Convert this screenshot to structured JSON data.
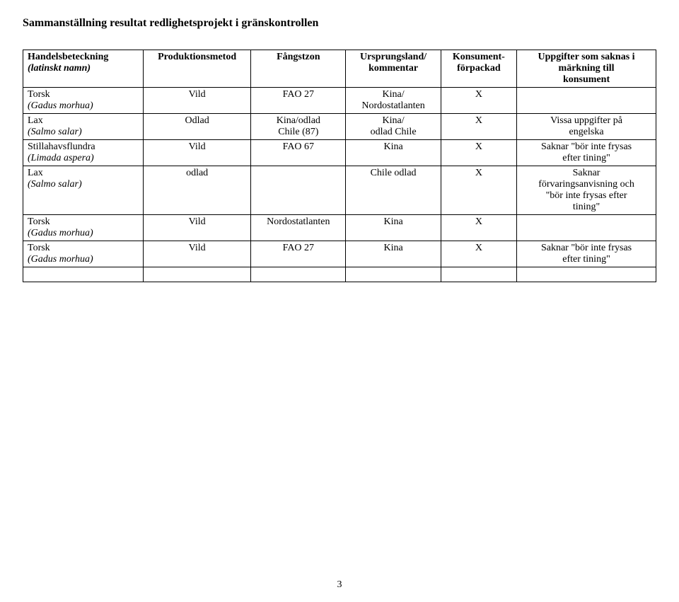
{
  "title": "Sammanställning resultat redlighetsprojekt i gränskontrollen",
  "pageNumber": "3",
  "headers": {
    "c1a": "Handelsbeteckning",
    "c1b": "(latinskt namn)",
    "c2": "Produktionsmetod",
    "c3": "Fångstzon",
    "c4a": "Ursprungsland/",
    "c4b": "kommentar",
    "c5a": "Konsument-",
    "c5b": "förpackad",
    "c6a": "Uppgifter som saknas i",
    "c6b": "märkning till",
    "c6c": "konsument"
  },
  "rows": [
    {
      "name": "Torsk",
      "latin": "(Gadus morhua)",
      "method": "Vild",
      "zone": "FAO 27",
      "origin1": "Kina/",
      "origin2": "Nordostatlanten",
      "pack": "X",
      "miss1": "",
      "miss2": ""
    },
    {
      "name": "Lax",
      "latin": "(Salmo salar)",
      "method": "Odlad",
      "zone": "Kina/odlad",
      "zone2": "Chile (87)",
      "origin1": "Kina/",
      "origin2": "odlad Chile",
      "pack": "X",
      "miss1": "Vissa uppgifter på",
      "miss2": "engelska"
    },
    {
      "name": "Stillahavsflundra",
      "latin": "(Limada aspera)",
      "method": "Vild",
      "zone": "FAO 67",
      "origin1": "Kina",
      "pack": "X",
      "miss1": "Saknar \"bör inte frysas",
      "miss2": "efter tining\""
    },
    {
      "name": "Lax",
      "latin": "(Salmo salar)",
      "method": "odlad",
      "zone": "",
      "origin1": "Chile odlad",
      "pack": "X",
      "miss1": "Saknar",
      "miss2": "förvaringsanvisning och",
      "miss3": "\"bör inte frysas efter",
      "miss4": "tining\""
    },
    {
      "name": "Torsk",
      "latin": "(Gadus morhua)",
      "method": "Vild",
      "zone": "Nordostatlanten",
      "origin1": "Kina",
      "pack": "X",
      "miss1": ""
    },
    {
      "name": "Torsk",
      "latin": "(Gadus morhua)",
      "method": "Vild",
      "zone": "FAO 27",
      "origin1": "Kina",
      "pack": "X",
      "miss1": "Saknar \"bör inte frysas",
      "miss2": "efter tining\""
    }
  ]
}
